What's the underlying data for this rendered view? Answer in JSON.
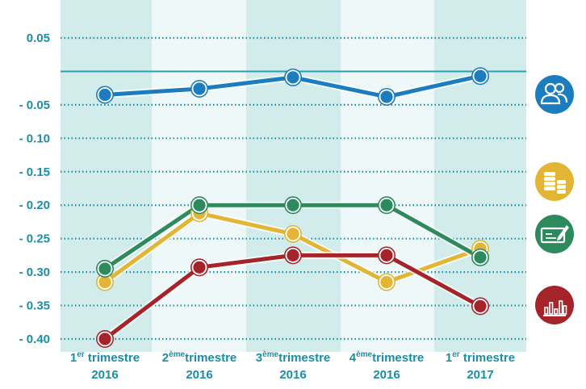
{
  "chart_data": {
    "type": "line",
    "title": "",
    "xlabel": "",
    "ylabel": "",
    "ylim": [
      -0.4,
      0.05
    ],
    "y_ticks": [
      "0.05",
      "- 0.05",
      "- 0.10",
      "- 0.15",
      "- 0.20",
      "- 0.25",
      "- 0.30",
      "- 0.35",
      "- 0.40"
    ],
    "y_tick_values": [
      0.05,
      -0.05,
      -0.1,
      -0.15,
      -0.2,
      -0.25,
      -0.3,
      -0.35,
      -0.4
    ],
    "reference_line": 0,
    "grid": true,
    "categories": [
      {
        "line1_prefix": "1",
        "line1_sup": "er",
        "line1_suffix": " trimestre",
        "line2": "2016"
      },
      {
        "line1_prefix": "2",
        "line1_sup": "ème",
        "line1_suffix": "trimestre",
        "line2": "2016"
      },
      {
        "line1_prefix": "3",
        "line1_sup": "ème",
        "line1_suffix": "trimestre",
        "line2": "2016"
      },
      {
        "line1_prefix": "4",
        "line1_sup": "ème",
        "line1_suffix": "trimestre",
        "line2": "2016"
      },
      {
        "line1_prefix": "1",
        "line1_sup": "er",
        "line1_suffix": " trimestre",
        "line2": "2017"
      }
    ],
    "series": [
      {
        "icon": "people-icon",
        "color": "#1b7dbf",
        "values": [
          -0.035,
          -0.026,
          -0.009,
          -0.038,
          -0.007
        ]
      },
      {
        "icon": "coins-icon",
        "color": "#e3b534",
        "values": [
          -0.315,
          -0.212,
          -0.243,
          -0.315,
          -0.265
        ]
      },
      {
        "icon": "check-icon",
        "color": "#2d8a5c",
        "values": [
          -0.295,
          -0.2,
          -0.2,
          -0.2,
          -0.278
        ]
      },
      {
        "icon": "bar-chart-icon",
        "color": "#a5242a",
        "values": [
          -0.4,
          -0.293,
          -0.275,
          -0.275,
          -0.351
        ]
      }
    ],
    "colors": {
      "tick_text": "#1a8ea8",
      "band_dark": "#d2ecec",
      "band_light": "#eef8f8",
      "reference_line": "#2a9fae",
      "grid": "#1a8ea8"
    }
  }
}
